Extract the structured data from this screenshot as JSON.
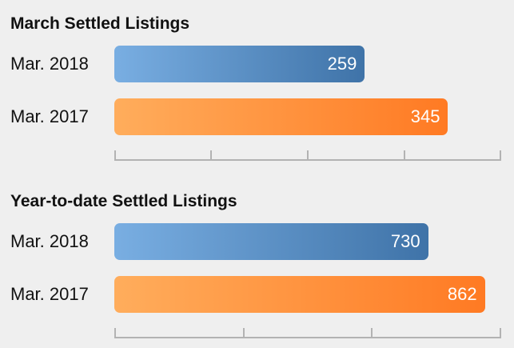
{
  "chart_data": [
    {
      "type": "bar",
      "orientation": "horizontal",
      "title": "March Settled Listings",
      "categories": [
        "Mar. 2018",
        "Mar. 2017"
      ],
      "values": [
        259,
        345
      ],
      "xlim": [
        0,
        400
      ],
      "colors": [
        "#5a8fc6",
        "#ff8f3a"
      ],
      "data_labels": true,
      "grid": false
    },
    {
      "type": "bar",
      "orientation": "horizontal",
      "title": "Year-to-date Settled Listings",
      "categories": [
        "Mar. 2018",
        "Mar. 2017"
      ],
      "values": [
        730,
        862
      ],
      "xlim": [
        0,
        900
      ],
      "colors": [
        "#5a8fc6",
        "#ff8f3a"
      ],
      "data_labels": true,
      "grid": false
    }
  ]
}
